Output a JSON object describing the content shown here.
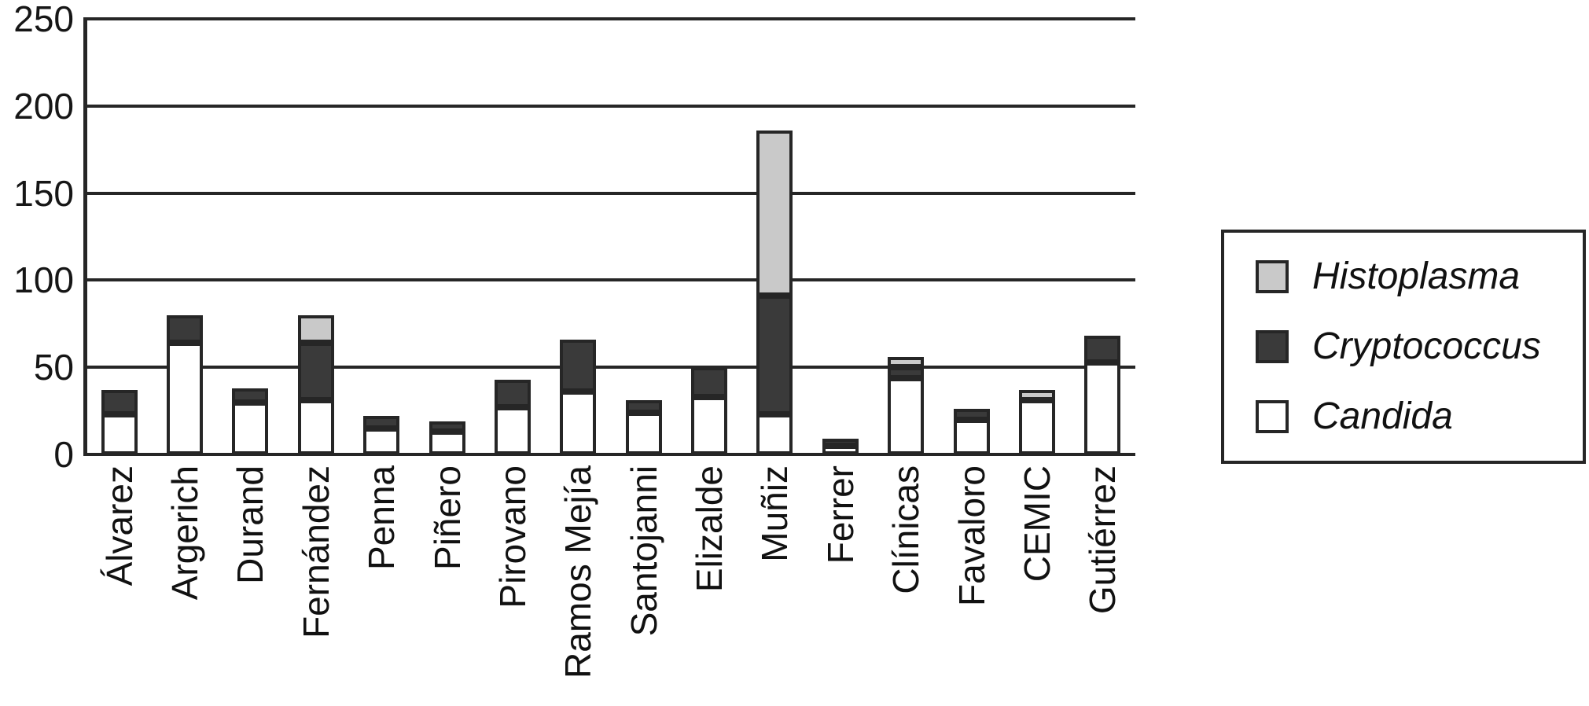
{
  "chart_data": {
    "type": "bar",
    "stacked": true,
    "title": "",
    "xlabel": "",
    "ylabel": "",
    "ylim": [
      0,
      250
    ],
    "yticks": [
      0,
      50,
      100,
      150,
      200,
      250
    ],
    "grid": true,
    "legend_position": "right",
    "categories": [
      "Álvarez",
      "Argerich",
      "Durand",
      "Fernández",
      "Penna",
      "Piñero",
      "Pirovano",
      "Ramos Mejía",
      "Santojanni",
      "Elizalde",
      "Muñiz",
      "Ferrer",
      "Clínicas",
      "Favaloro",
      "CEMIC",
      "Gutiérrez"
    ],
    "series": [
      {
        "name": "Candida",
        "color": "#ffffff",
        "values": [
          23,
          64,
          30,
          31,
          15,
          13,
          27,
          36,
          24,
          33,
          23,
          5,
          44,
          20,
          31,
          53
        ]
      },
      {
        "name": "Cryptococcus",
        "color": "#3a3a3a",
        "values": [
          14,
          16,
          8,
          33,
          7,
          6,
          16,
          30,
          7,
          17,
          68,
          4,
          6,
          6,
          0,
          15
        ]
      },
      {
        "name": "Histoplasma",
        "color": "#c9c9c9",
        "values": [
          0,
          0,
          0,
          16,
          0,
          0,
          0,
          0,
          0,
          0,
          95,
          0,
          6,
          0,
          6,
          0
        ]
      }
    ],
    "legend": [
      {
        "label": "Histoplasma",
        "color": "#c9c9c9"
      },
      {
        "label": "Cryptococcus",
        "color": "#3a3a3a"
      },
      {
        "label": "Candida",
        "color": "#ffffff"
      }
    ]
  },
  "colors": {
    "axis": "#262626",
    "grid": "#262626",
    "bar_outline": "#262626",
    "background": "#ffffff"
  }
}
